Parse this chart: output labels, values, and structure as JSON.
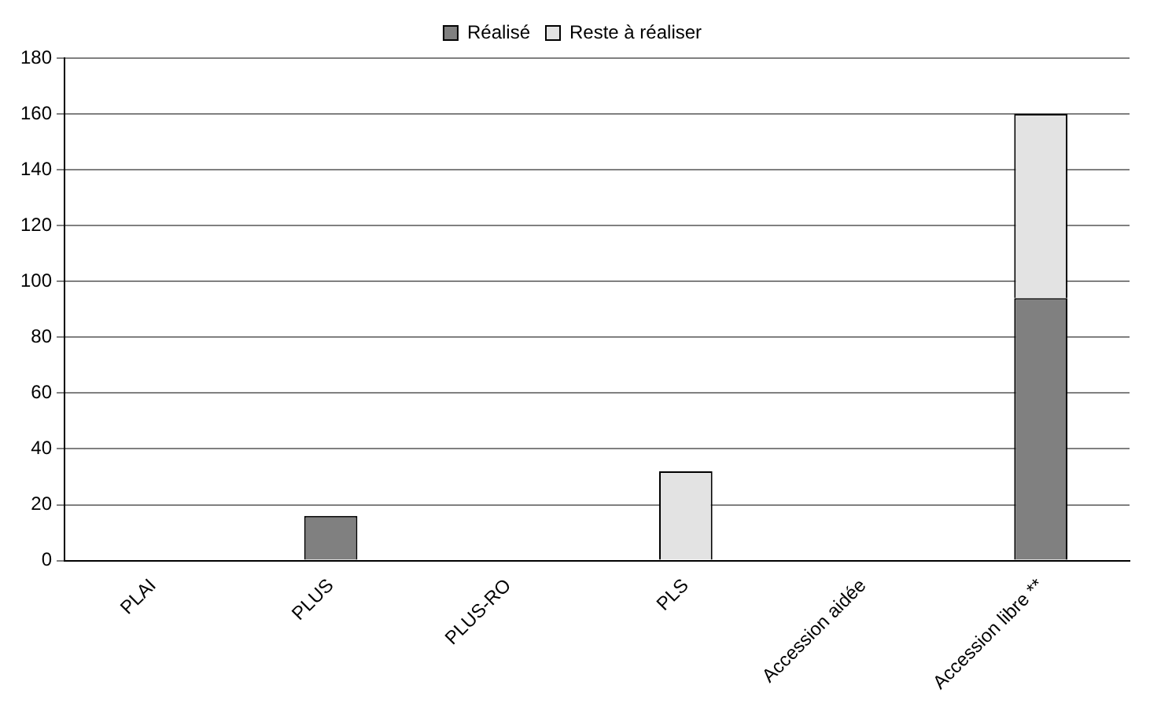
{
  "chart_data": {
    "type": "bar",
    "stacked": true,
    "categories": [
      "PLAI",
      "PLUS",
      "PLUS-RO",
      "PLS",
      "Accession aidée",
      "Accession libre **"
    ],
    "series": [
      {
        "name": "Réalisé",
        "color": "#808080",
        "values": [
          0,
          16,
          0,
          0,
          0,
          94
        ]
      },
      {
        "name": "Reste à réaliser",
        "color": "#e3e3e3",
        "values": [
          0,
          0,
          0,
          32,
          0,
          66
        ]
      }
    ],
    "ylim": [
      0,
      180
    ],
    "yticks": [
      0,
      20,
      40,
      60,
      80,
      100,
      120,
      140,
      160,
      180
    ],
    "grid": "y",
    "legend": "top"
  }
}
